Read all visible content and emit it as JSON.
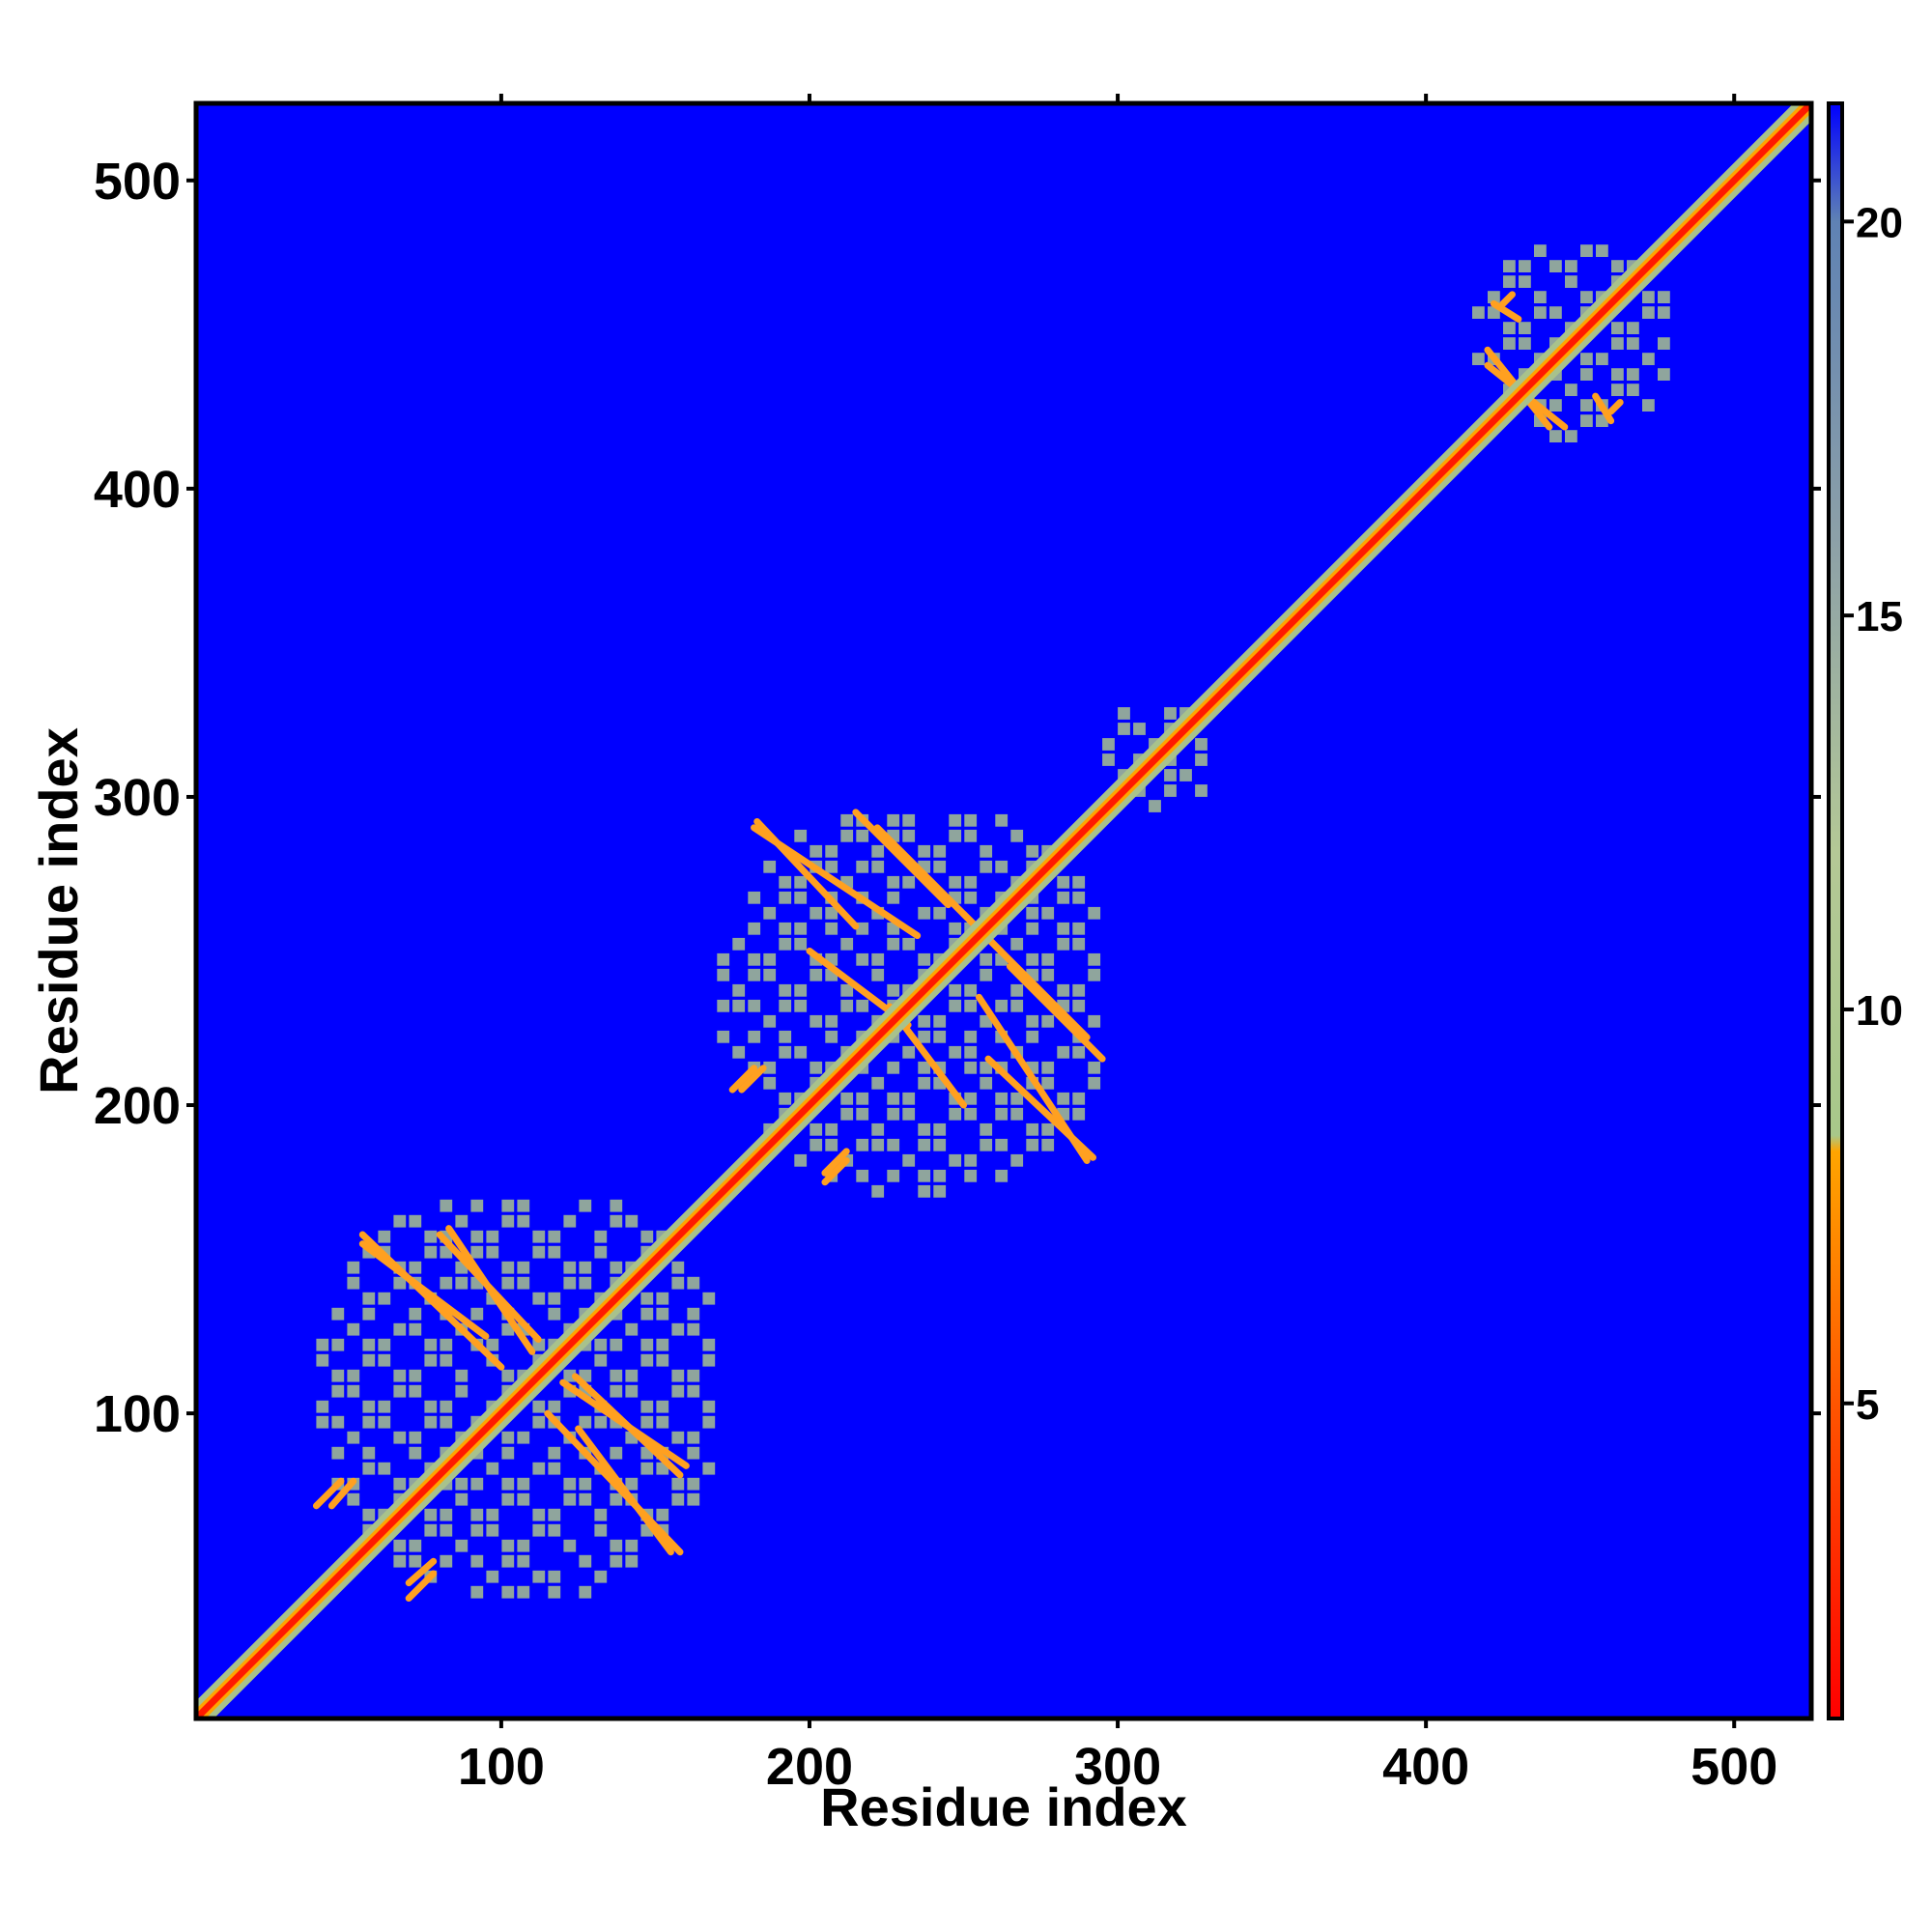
{
  "chart_data": {
    "type": "heatmap",
    "title": "",
    "xlabel": "Residue index",
    "ylabel": "Residue index",
    "xlim": [
      1,
      525
    ],
    "ylim": [
      1,
      525
    ],
    "x_ticks": [
      100,
      200,
      300,
      400,
      500
    ],
    "y_ticks": [
      100,
      200,
      300,
      400,
      500
    ],
    "colorbar": {
      "range": [
        1,
        21.5
      ],
      "ticks": [
        5,
        10,
        15,
        20
      ],
      "stops": [
        {
          "value": 1,
          "color": "#ff0000"
        },
        {
          "value": 5,
          "color": "#ff5500"
        },
        {
          "value": 8.2,
          "color": "#ffa500"
        },
        {
          "value": 8.4,
          "color": "#a8c88a"
        },
        {
          "value": 12,
          "color": "#b4c896"
        },
        {
          "value": 16,
          "color": "#8ca0a8"
        },
        {
          "value": 20,
          "color": "#5f82b4"
        },
        {
          "value": 21.5,
          "color": "#0000ff"
        }
      ]
    },
    "background_color": "#0000ff",
    "diagonal_band": {
      "from": 1,
      "to": 525,
      "color": "#ff1a00"
    },
    "domains": [
      {
        "name": "",
        "start": 40,
        "end": 170
      },
      {
        "name": "",
        "start": 170,
        "end": 295
      },
      {
        "name": "",
        "start": 295,
        "end": 330
      },
      {
        "name": "",
        "start": 415,
        "end": 480
      }
    ],
    "contact_lines": [
      {
        "x1": 55,
        "y1": 158,
        "x2": 100,
        "y2": 115
      },
      {
        "x1": 80,
        "y1": 158,
        "x2": 112,
        "y2": 124
      },
      {
        "x1": 120,
        "y1": 110,
        "x2": 160,
        "y2": 83
      },
      {
        "x1": 125,
        "y1": 95,
        "x2": 155,
        "y2": 55
      },
      {
        "x1": 40,
        "y1": 70,
        "x2": 48,
        "y2": 78
      },
      {
        "x1": 70,
        "y1": 45,
        "x2": 78,
        "y2": 52
      },
      {
        "x1": 183,
        "y1": 292,
        "x2": 215,
        "y2": 258
      },
      {
        "x1": 215,
        "y1": 295,
        "x2": 245,
        "y2": 265
      },
      {
        "x1": 200,
        "y1": 250,
        "x2": 232,
        "y2": 226
      },
      {
        "x1": 250,
        "y1": 262,
        "x2": 290,
        "y2": 222
      },
      {
        "x1": 255,
        "y1": 235,
        "x2": 290,
        "y2": 182
      },
      {
        "x1": 175,
        "y1": 205,
        "x2": 182,
        "y2": 212
      },
      {
        "x1": 205,
        "y1": 178,
        "x2": 212,
        "y2": 185
      },
      {
        "x1": 425,
        "y1": 460,
        "x2": 428,
        "y2": 463
      },
      {
        "x1": 420,
        "y1": 445,
        "x2": 440,
        "y2": 420
      },
      {
        "x1": 455,
        "y1": 430,
        "x2": 460,
        "y2": 422
      }
    ]
  }
}
